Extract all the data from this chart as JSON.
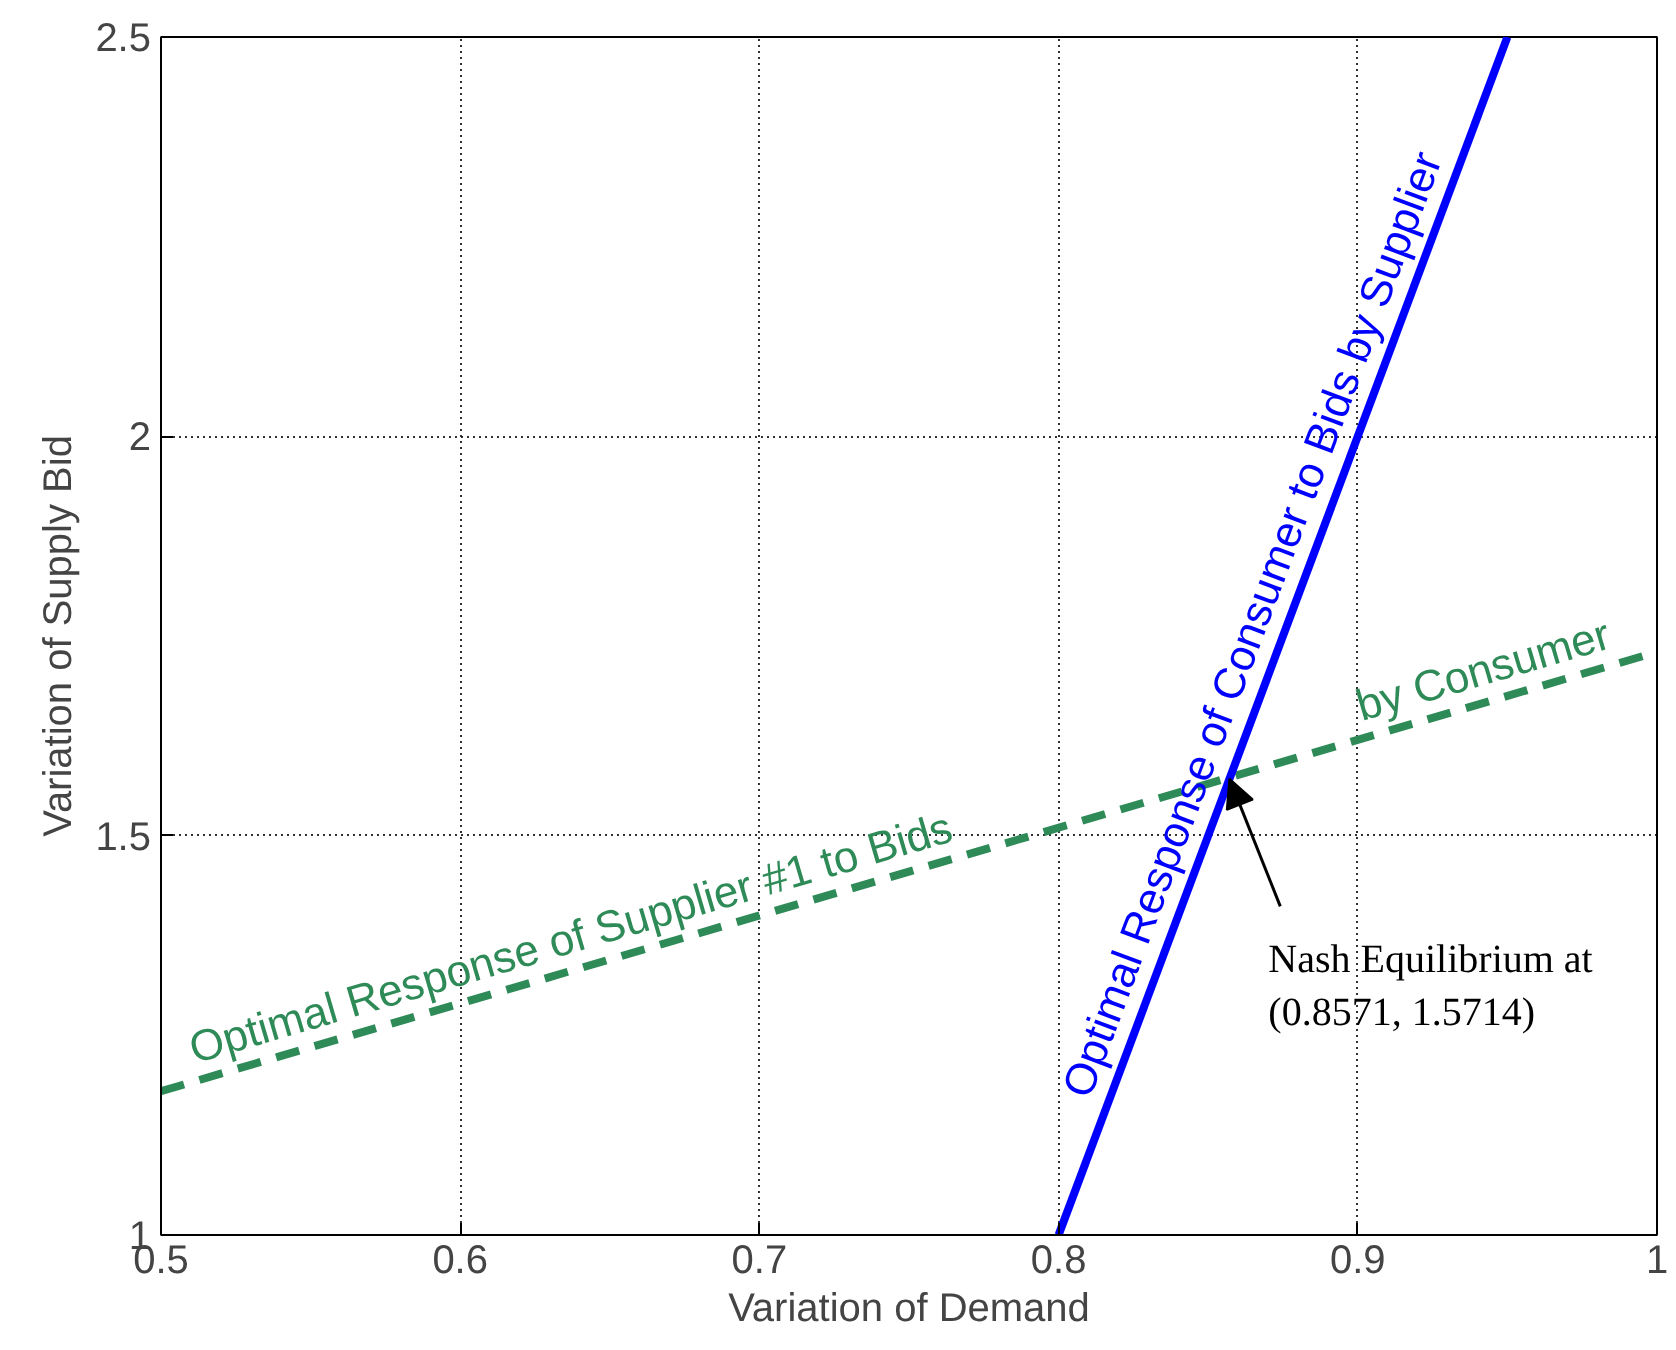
{
  "chart_data": {
    "type": "line",
    "xlabel": "Variation of Demand",
    "ylabel": "Variation of Supply Bid",
    "xlim": [
      0.5,
      1
    ],
    "ylim": [
      1,
      2.5
    ],
    "xticks": [
      0.5,
      0.6,
      0.7,
      0.8,
      0.9,
      1
    ],
    "yticks": [
      1,
      1.5,
      2,
      2.5
    ],
    "grid": true,
    "series": [
      {
        "color": "#2e8b57",
        "line_style": "dashed",
        "x": [
          0.5,
          1
        ],
        "values": [
          1.18,
          1.73
        ]
      },
      {
        "color": "#0000ff",
        "line_style": "solid",
        "x": [
          0.8,
          0.95
        ],
        "values": [
          1,
          2.5
        ]
      }
    ],
    "annotations": [
      {
        "text": "Optimal Response of Supplier #1 to Bids",
        "x": 0.64,
        "y": 1.3326
      },
      {
        "text": "by Consumer",
        "x": 0.945,
        "y": 1.6681
      },
      {
        "text": "Optimal Response of Consumer to Bids by Supplier",
        "x": 0.875,
        "y": 1.75
      },
      {
        "text": "Nash Equilibrium at\n(0.8571,  1.5714)",
        "x": 0.8571,
        "y": 1.5714
      }
    ]
  }
}
